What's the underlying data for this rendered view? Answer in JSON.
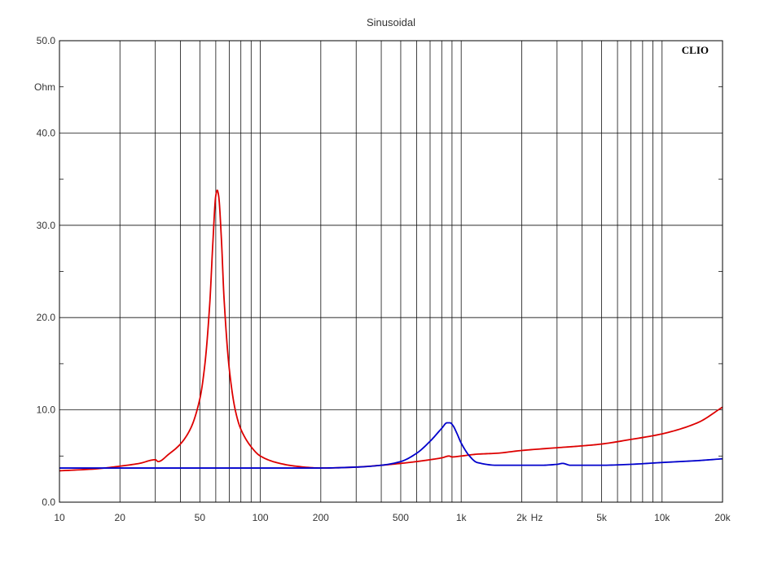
{
  "chart_data": {
    "type": "line",
    "title": "Sinusoidal",
    "brand": "CLIO",
    "ylabel": "Ohm",
    "xlabel": "Hz",
    "x_scale": "log",
    "xlim": [
      10,
      20000
    ],
    "ylim": [
      0,
      50
    ],
    "grid": true,
    "y_ticks": [
      {
        "value": 0,
        "label": "0.0"
      },
      {
        "value": 10,
        "label": "10.0"
      },
      {
        "value": 20,
        "label": "20.0"
      },
      {
        "value": 30,
        "label": "30.0"
      },
      {
        "value": 40,
        "label": "40.0"
      },
      {
        "value": 50,
        "label": "50.0"
      }
    ],
    "x_ticks": [
      {
        "value": 10,
        "label": "10"
      },
      {
        "value": 20,
        "label": "20"
      },
      {
        "value": 50,
        "label": "50"
      },
      {
        "value": 100,
        "label": "100"
      },
      {
        "value": 200,
        "label": "200"
      },
      {
        "value": 500,
        "label": "500"
      },
      {
        "value": 1000,
        "label": "1k"
      },
      {
        "value": 2000,
        "label": "2k"
      },
      {
        "value": 5000,
        "label": "5k"
      },
      {
        "value": 10000,
        "label": "10k"
      },
      {
        "value": 20000,
        "label": "20k"
      }
    ],
    "series": [
      {
        "color": "#dd0000",
        "x": [
          10,
          15,
          20,
          25,
          30,
          31,
          35,
          40,
          45,
          50,
          53,
          56,
          58,
          60,
          61,
          62,
          64,
          66,
          70,
          75,
          80,
          90,
          100,
          120,
          150,
          200,
          300,
          400,
          500,
          600,
          700,
          800,
          870,
          900,
          1000,
          1200,
          1500,
          2000,
          3000,
          4000,
          5000,
          7000,
          10000,
          15000,
          20000
        ],
        "y": [
          3.4,
          3.6,
          3.9,
          4.2,
          4.6,
          4.4,
          5.2,
          6.3,
          8.0,
          11.2,
          15.0,
          21.5,
          28.0,
          33.2,
          33.8,
          33.2,
          28.5,
          22.0,
          14.5,
          10.0,
          7.9,
          6.0,
          5.0,
          4.3,
          3.9,
          3.7,
          3.8,
          4.0,
          4.2,
          4.4,
          4.6,
          4.8,
          5.0,
          4.9,
          5.0,
          5.2,
          5.3,
          5.6,
          5.9,
          6.1,
          6.3,
          6.8,
          7.4,
          8.6,
          10.3
        ]
      },
      {
        "color": "#0000cc",
        "x": [
          10,
          20,
          50,
          100,
          200,
          300,
          400,
          500,
          600,
          700,
          800,
          850,
          880,
          910,
          950,
          1000,
          1100,
          1200,
          1500,
          2000,
          2500,
          3000,
          3200,
          3500,
          4000,
          5000,
          7000,
          10000,
          15000,
          20000
        ],
        "y": [
          3.7,
          3.7,
          3.7,
          3.7,
          3.7,
          3.8,
          4.0,
          4.4,
          5.3,
          6.6,
          8.0,
          8.6,
          8.6,
          8.3,
          7.5,
          6.4,
          5.0,
          4.3,
          4.0,
          4.0,
          4.0,
          4.1,
          4.2,
          4.0,
          4.0,
          4.0,
          4.1,
          4.3,
          4.5,
          4.7
        ]
      }
    ]
  }
}
